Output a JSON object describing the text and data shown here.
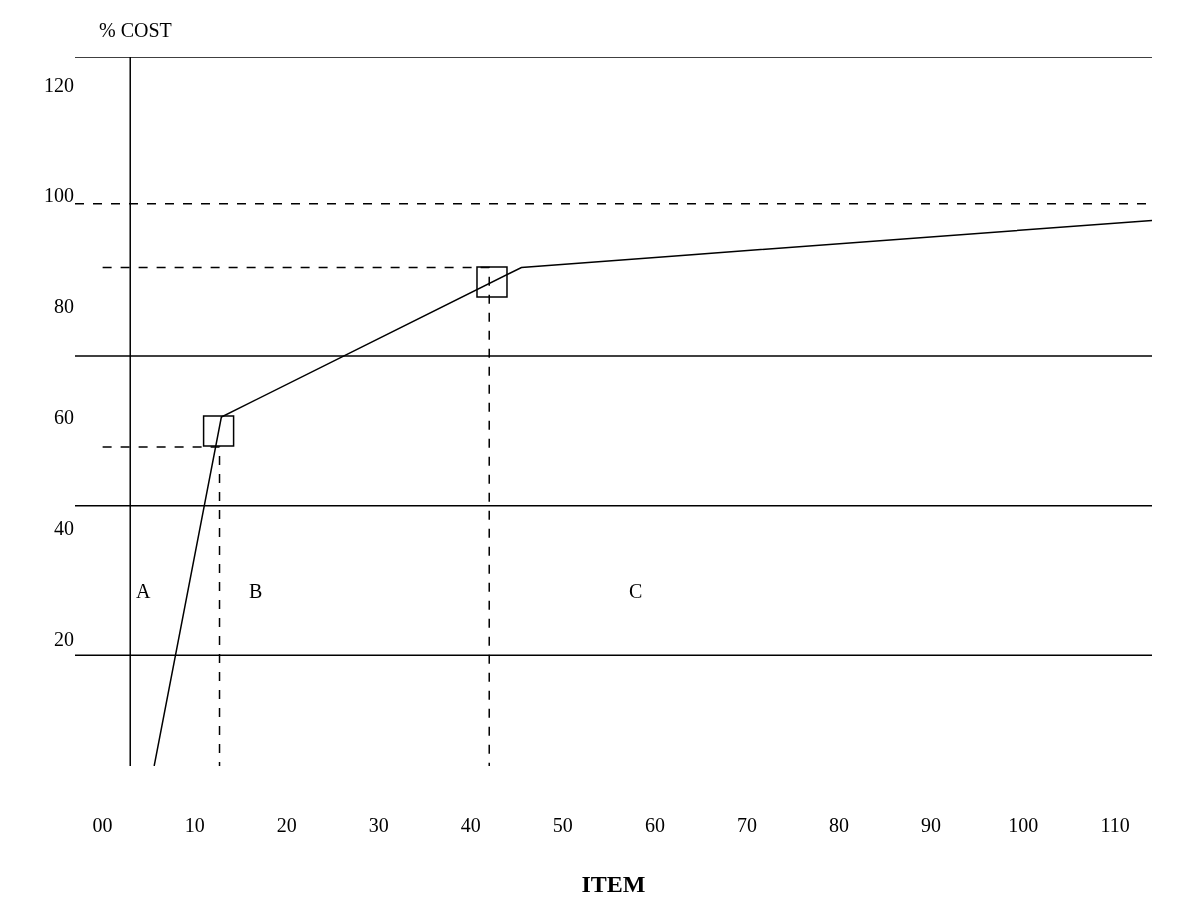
{
  "chart_data": {
    "type": "line",
    "xlabel": "ITEM",
    "ylabel": "% COST",
    "xlim": [
      -3,
      114
    ],
    "ylim": [
      -3,
      125
    ],
    "xticks": [
      {
        "value": 0,
        "label": "00"
      },
      10,
      20,
      30,
      40,
      50,
      60,
      70,
      80,
      90,
      100,
      110
    ],
    "yticks": [
      20,
      40,
      60,
      80,
      100,
      120
    ],
    "series": [
      {
        "color": "#000000",
        "x": [
          5.6,
          12.9,
          45.5,
          114
        ],
        "values": [
          -3,
          60,
          87,
          95.5
        ],
        "marker": "none",
        "line_style": "solid"
      },
      {
        "type": "scatter",
        "color": "#000000",
        "x": [
          12.6,
          42.3
        ],
        "values": [
          57.5,
          84.4
        ],
        "marker": "square"
      },
      {
        "color": "#000000",
        "x": [
          0,
          12.7,
          12.7
        ],
        "values": [
          54.6,
          54.6,
          -3
        ],
        "marker": "none",
        "line_style": "dashed"
      },
      {
        "color": "#000000",
        "x": [
          0,
          42,
          42
        ],
        "values": [
          87,
          87,
          -3
        ],
        "marker": "none",
        "line_style": "dashed"
      }
    ],
    "ref_lines": [
      {
        "axis": "x",
        "value": 3,
        "color": "#000000",
        "line_style": "solid"
      },
      {
        "axis": "y",
        "value": 125,
        "color": "#000000",
        "line_style": "solid"
      },
      {
        "axis": "y",
        "value": 98.5,
        "color": "#000000",
        "line_style": "dashed"
      },
      {
        "axis": "y",
        "value": 71,
        "color": "#000000",
        "line_style": "solid"
      },
      {
        "axis": "y",
        "value": 44,
        "color": "#000000",
        "line_style": "solid"
      },
      {
        "axis": "y",
        "value": 17,
        "color": "#000000",
        "line_style": "solid"
      }
    ],
    "annotations": [
      "A",
      "B",
      "C"
    ]
  }
}
